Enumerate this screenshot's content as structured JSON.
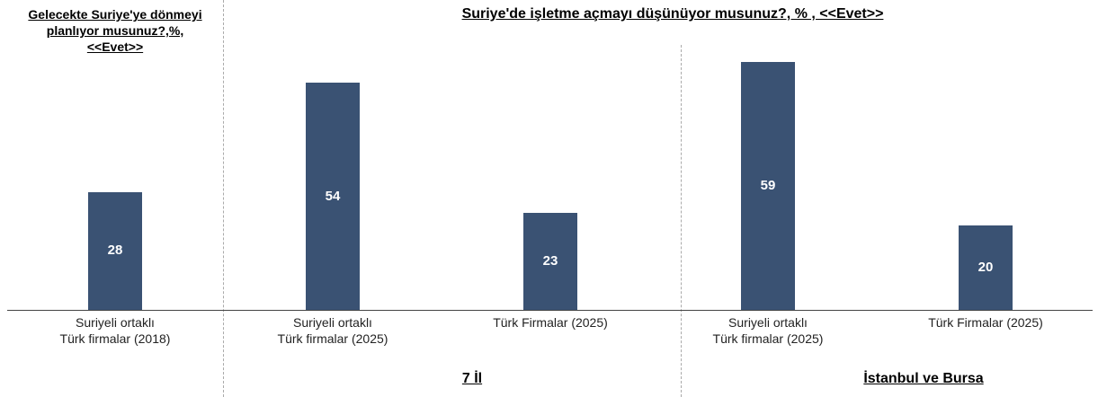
{
  "chart_data": [
    {
      "type": "bar",
      "title": "Gelecekte Suriye'ye dönmeyi planlıyor musunuz?,%, <<Evet>>",
      "categories": [
        "Suriyeli ortaklı Türk firmalar (2018)"
      ],
      "values": [
        28
      ],
      "color": "#3a5273"
    },
    {
      "type": "bar",
      "title": "Suriye'de işletme açmayı düşünüyor musunuz?, % , <<Evet>>",
      "groups": [
        "7 İl",
        "İstanbul ve Bursa"
      ],
      "categories": [
        "Suriyeli ortaklı Türk firmalar (2025)",
        "Türk Firmalar (2025)",
        "Suriyeli ortaklı Türk firmalar (2025)",
        "Türk Firmalar (2025)"
      ],
      "values": [
        54,
        23,
        59,
        20
      ],
      "color": "#3a5273"
    }
  ]
}
